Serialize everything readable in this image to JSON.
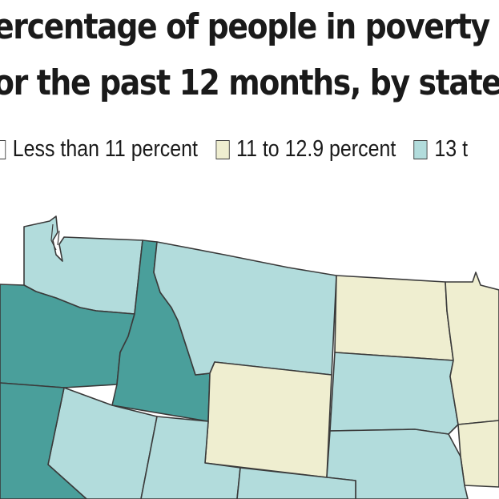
{
  "title": {
    "line1": "ercentage of people in poverty",
    "line2": "or the past 12 months, by state"
  },
  "legend": [
    {
      "label": "Less than 11 percent",
      "color": "#ffffff"
    },
    {
      "label": "11 to 12.9 percent",
      "color": "#efeed0"
    },
    {
      "label": "13 t",
      "color": "#b2dcdc"
    }
  ],
  "colors": {
    "low": "#ffffff",
    "mid": "#efeed0",
    "high": "#b2dcdc",
    "highest": "#4a9f9b",
    "border": "#3a3a3a"
  }
}
